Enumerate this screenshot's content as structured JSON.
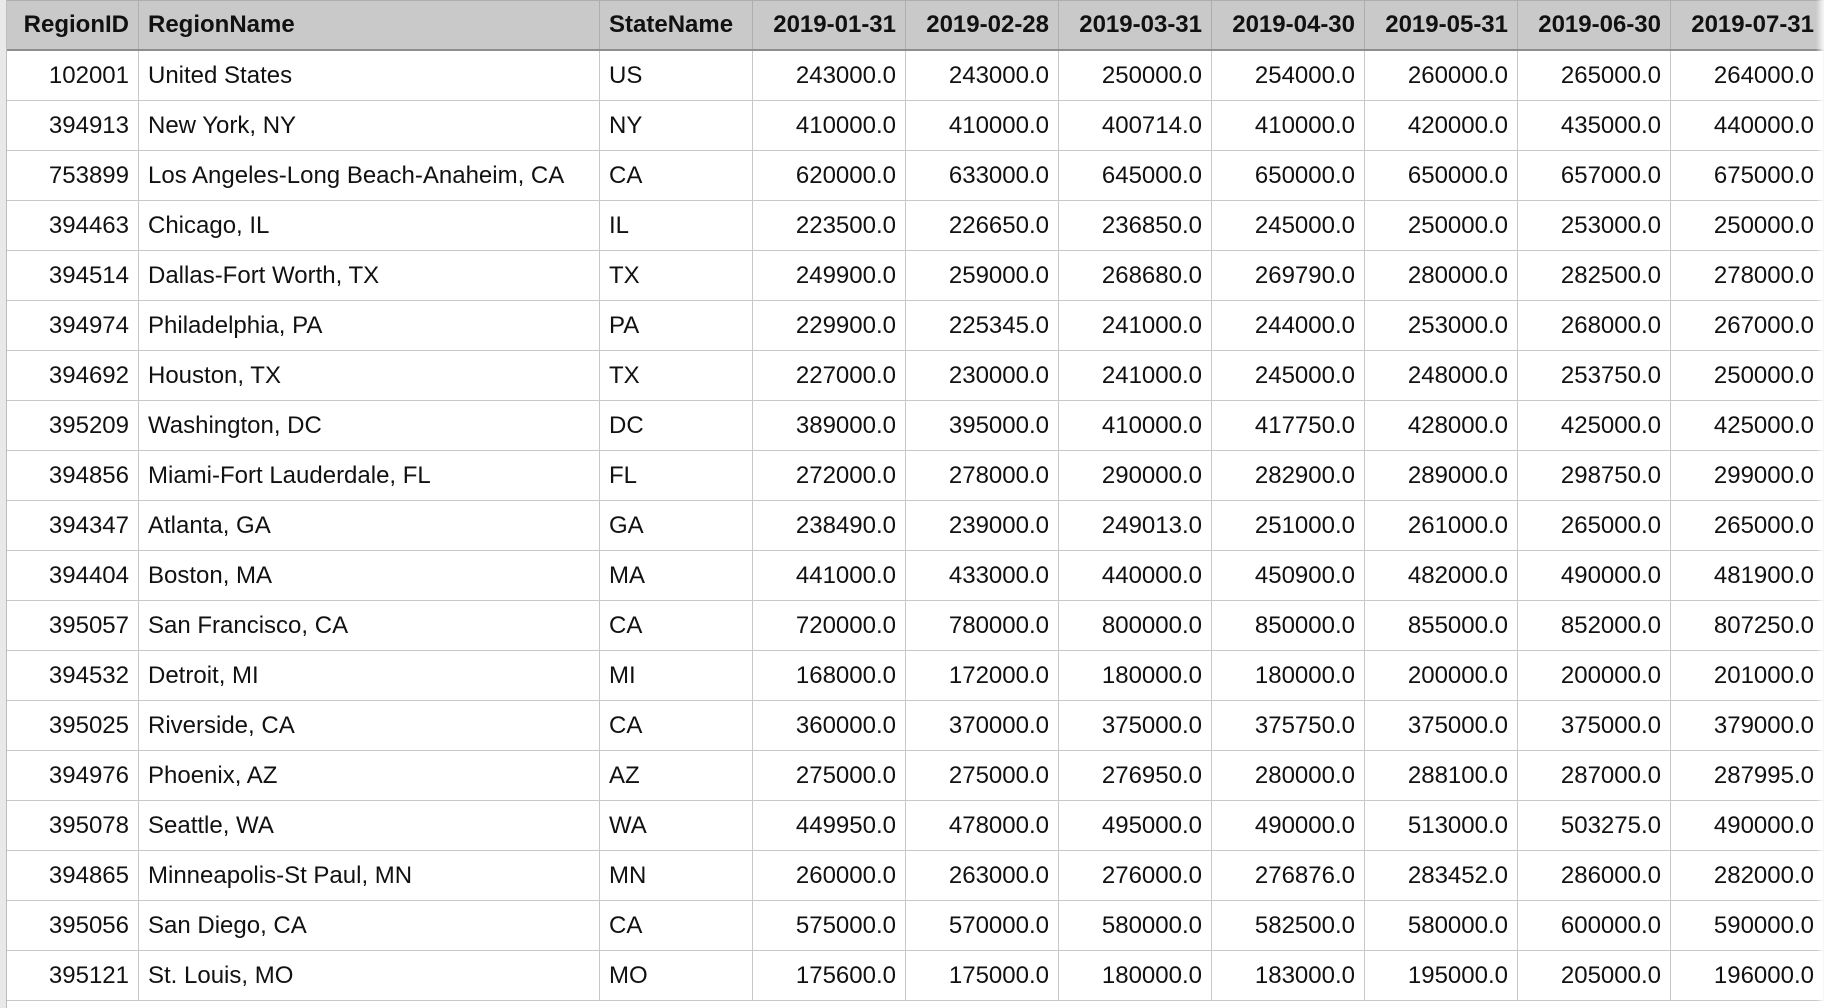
{
  "table": {
    "columns": [
      "RegionID",
      "RegionName",
      "StateName",
      "2019-01-31",
      "2019-02-28",
      "2019-03-31",
      "2019-04-30",
      "2019-05-31",
      "2019-06-30",
      "2019-07-31"
    ],
    "rows": [
      [
        "102001",
        "United States",
        "US",
        "243000.0",
        "243000.0",
        "250000.0",
        "254000.0",
        "260000.0",
        "265000.0",
        "264000.0"
      ],
      [
        "394913",
        "New York, NY",
        "NY",
        "410000.0",
        "410000.0",
        "400714.0",
        "410000.0",
        "420000.0",
        "435000.0",
        "440000.0"
      ],
      [
        "753899",
        "Los Angeles-Long Beach-Anaheim, CA",
        "CA",
        "620000.0",
        "633000.0",
        "645000.0",
        "650000.0",
        "650000.0",
        "657000.0",
        "675000.0"
      ],
      [
        "394463",
        "Chicago, IL",
        "IL",
        "223500.0",
        "226650.0",
        "236850.0",
        "245000.0",
        "250000.0",
        "253000.0",
        "250000.0"
      ],
      [
        "394514",
        "Dallas-Fort Worth, TX",
        "TX",
        "249900.0",
        "259000.0",
        "268680.0",
        "269790.0",
        "280000.0",
        "282500.0",
        "278000.0"
      ],
      [
        "394974",
        "Philadelphia, PA",
        "PA",
        "229900.0",
        "225345.0",
        "241000.0",
        "244000.0",
        "253000.0",
        "268000.0",
        "267000.0"
      ],
      [
        "394692",
        "Houston, TX",
        "TX",
        "227000.0",
        "230000.0",
        "241000.0",
        "245000.0",
        "248000.0",
        "253750.0",
        "250000.0"
      ],
      [
        "395209",
        "Washington, DC",
        "DC",
        "389000.0",
        "395000.0",
        "410000.0",
        "417750.0",
        "428000.0",
        "425000.0",
        "425000.0"
      ],
      [
        "394856",
        "Miami-Fort Lauderdale, FL",
        "FL",
        "272000.0",
        "278000.0",
        "290000.0",
        "282900.0",
        "289000.0",
        "298750.0",
        "299000.0"
      ],
      [
        "394347",
        "Atlanta, GA",
        "GA",
        "238490.0",
        "239000.0",
        "249013.0",
        "251000.0",
        "261000.0",
        "265000.0",
        "265000.0"
      ],
      [
        "394404",
        "Boston, MA",
        "MA",
        "441000.0",
        "433000.0",
        "440000.0",
        "450900.0",
        "482000.0",
        "490000.0",
        "481900.0"
      ],
      [
        "395057",
        "San Francisco, CA",
        "CA",
        "720000.0",
        "780000.0",
        "800000.0",
        "850000.0",
        "855000.0",
        "852000.0",
        "807250.0"
      ],
      [
        "394532",
        "Detroit, MI",
        "MI",
        "168000.0",
        "172000.0",
        "180000.0",
        "180000.0",
        "200000.0",
        "200000.0",
        "201000.0"
      ],
      [
        "395025",
        "Riverside, CA",
        "CA",
        "360000.0",
        "370000.0",
        "375000.0",
        "375750.0",
        "375000.0",
        "375000.0",
        "379000.0"
      ],
      [
        "394976",
        "Phoenix, AZ",
        "AZ",
        "275000.0",
        "275000.0",
        "276950.0",
        "280000.0",
        "288100.0",
        "287000.0",
        "287995.0"
      ],
      [
        "395078",
        "Seattle, WA",
        "WA",
        "449950.0",
        "478000.0",
        "495000.0",
        "490000.0",
        "513000.0",
        "503275.0",
        "490000.0"
      ],
      [
        "394865",
        "Minneapolis-St Paul, MN",
        "MN",
        "260000.0",
        "263000.0",
        "276000.0",
        "276876.0",
        "283452.0",
        "286000.0",
        "282000.0"
      ],
      [
        "395056",
        "San Diego, CA",
        "CA",
        "575000.0",
        "570000.0",
        "580000.0",
        "582500.0",
        "580000.0",
        "600000.0",
        "590000.0"
      ],
      [
        "395121",
        "St. Louis, MO",
        "MO",
        "175600.0",
        "175000.0",
        "180000.0",
        "183000.0",
        "195000.0",
        "205000.0",
        "196000.0"
      ]
    ]
  },
  "colors": {
    "header_bg": "#c9c9c9",
    "grid_line": "#c8c8c8",
    "text": "#111111"
  }
}
